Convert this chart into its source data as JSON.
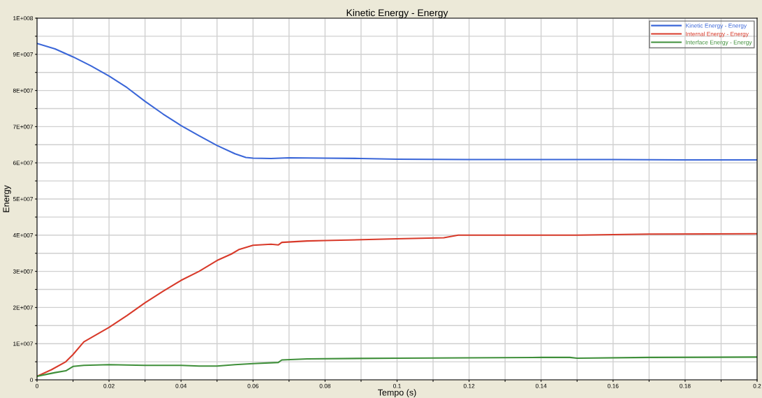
{
  "chart_data": {
    "type": "line",
    "title": "Kinetic Energy - Energy",
    "xlabel": "Tempo (s)",
    "ylabel": "Energy",
    "xlim": [
      0,
      0.2
    ],
    "ylim": [
      0,
      100000000
    ],
    "xticks": [
      0,
      {
        "value": 0.01,
        "label": null
      },
      0.02,
      {
        "value": 0.03,
        "label": null
      },
      0.04,
      {
        "value": 0.05,
        "label": null
      },
      0.06,
      {
        "value": 0.07,
        "label": null
      },
      0.08,
      {
        "value": 0.09,
        "label": null
      },
      0.1,
      {
        "value": 0.11,
        "label": null
      },
      0.12,
      {
        "value": 0.13,
        "label": null
      },
      0.14,
      {
        "value": 0.15,
        "label": null
      },
      0.16,
      {
        "value": 0.17,
        "label": null
      },
      0.18,
      {
        "value": 0.19,
        "label": null
      },
      0.2
    ],
    "yticks": [
      0,
      {
        "value": 5000000,
        "label": null
      },
      {
        "value": 10000000,
        "label": "1E+007"
      },
      {
        "value": 15000000,
        "label": null
      },
      {
        "value": 20000000,
        "label": "2E+007"
      },
      {
        "value": 25000000,
        "label": null
      },
      {
        "value": 30000000,
        "label": "3E+007"
      },
      {
        "value": 35000000,
        "label": null
      },
      {
        "value": 40000000,
        "label": "4E+007"
      },
      {
        "value": 45000000,
        "label": null
      },
      {
        "value": 50000000,
        "label": "5E+007"
      },
      {
        "value": 55000000,
        "label": null
      },
      {
        "value": 60000000,
        "label": "6E+007"
      },
      {
        "value": 65000000,
        "label": null
      },
      {
        "value": 70000000,
        "label": "7E+007"
      },
      {
        "value": 75000000,
        "label": null
      },
      {
        "value": 80000000,
        "label": "8E+007"
      },
      {
        "value": 85000000,
        "label": null
      },
      {
        "value": 90000000,
        "label": "9E+007"
      },
      {
        "value": 95000000,
        "label": null
      },
      {
        "value": 100000000,
        "label": "1E+008"
      }
    ],
    "grid": true,
    "legend": "top right",
    "marker": "none",
    "line_style": "solid",
    "series": [
      {
        "name": "Kinetic Energy - Energy",
        "color": "#3a66d8",
        "x": [
          0,
          0.005,
          0.01,
          0.015,
          0.02,
          0.025,
          0.03,
          0.035,
          0.04,
          0.045,
          0.05,
          0.055,
          0.058,
          0.06,
          0.065,
          0.07,
          0.08,
          0.09,
          0.1,
          0.12,
          0.14,
          0.16,
          0.18,
          0.2
        ],
        "values": [
          93000000,
          91500000,
          89300000,
          86800000,
          84000000,
          80800000,
          77000000,
          73500000,
          70300000,
          67500000,
          64800000,
          62500000,
          61500000,
          61300000,
          61200000,
          61400000,
          61300000,
          61200000,
          61000000,
          60900000,
          60900000,
          60900000,
          60800000,
          60800000
        ]
      },
      {
        "name": "Internal Energy - Energy",
        "color": "#d83a2a",
        "x": [
          0,
          0.004,
          0.008,
          0.01,
          0.013,
          0.02,
          0.025,
          0.03,
          0.035,
          0.04,
          0.045,
          0.05,
          0.054,
          0.056,
          0.06,
          0.065,
          0.067,
          0.068,
          0.075,
          0.08,
          0.1,
          0.113,
          0.117,
          0.15,
          0.17,
          0.2
        ],
        "values": [
          1000000,
          2800000,
          5000000,
          7000000,
          10500000,
          14500000,
          17800000,
          21300000,
          24500000,
          27500000,
          30000000,
          33000000,
          34800000,
          36000000,
          37200000,
          37500000,
          37300000,
          38000000,
          38400000,
          38500000,
          39000000,
          39300000,
          40000000,
          40000000,
          40300000,
          40400000
        ]
      },
      {
        "name": "Interface Energy - Energy",
        "color": "#3f8f3a",
        "x": [
          0,
          0.005,
          0.008,
          0.01,
          0.013,
          0.02,
          0.03,
          0.04,
          0.045,
          0.05,
          0.055,
          0.06,
          0.067,
          0.068,
          0.075,
          0.1,
          0.14,
          0.148,
          0.15,
          0.17,
          0.2
        ],
        "values": [
          1000000,
          2000000,
          2500000,
          3700000,
          4000000,
          4200000,
          4000000,
          4000000,
          3800000,
          3800000,
          4200000,
          4500000,
          4800000,
          5500000,
          5800000,
          6000000,
          6200000,
          6200000,
          6000000,
          6200000,
          6300000
        ]
      }
    ]
  }
}
